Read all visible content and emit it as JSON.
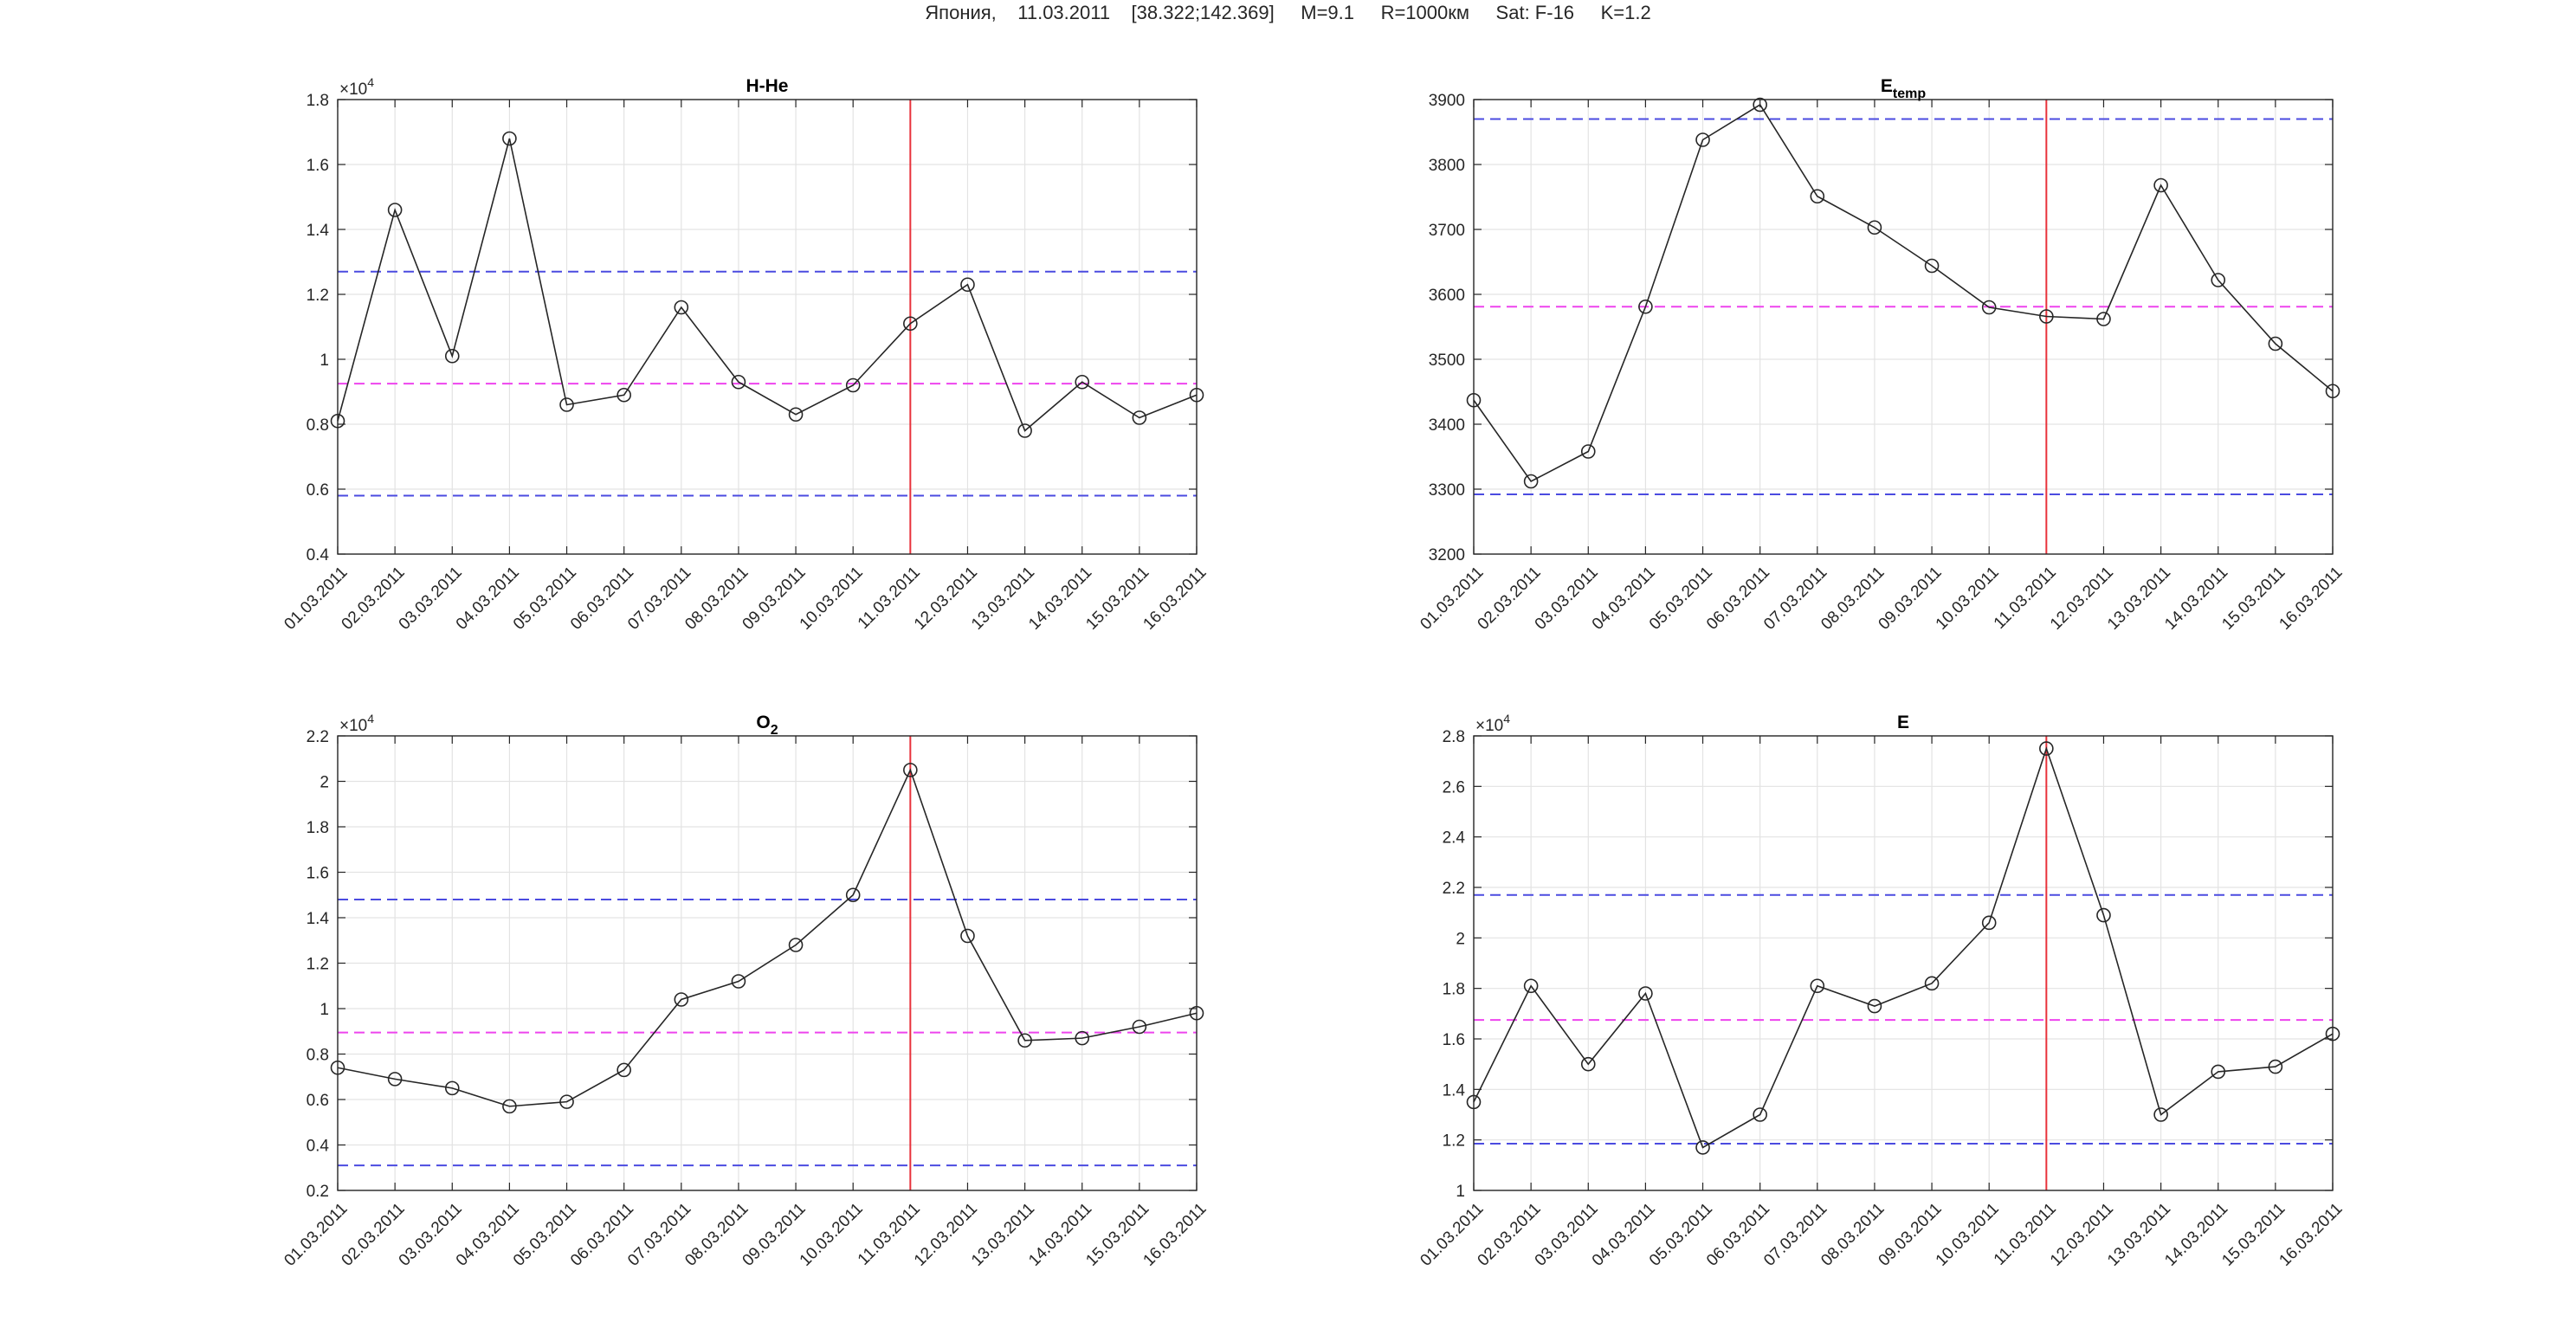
{
  "suptitle": "Япония,    11.03.2011    [38.322;142.369]     M=9.1     R=1000км     Sat: F-16     K=1.2",
  "colors": {
    "line": "#262626",
    "event": "#e8323c",
    "threshold": "#4b4be0",
    "mean": "#ee44ee",
    "grid": "#e3e3e3",
    "axes": "#262626"
  },
  "chart_data": [
    {
      "type": "line",
      "title": "H-He",
      "categories": [
        "01.03.2011",
        "02.03.2011",
        "03.03.2011",
        "04.03.2011",
        "05.03.2011",
        "06.03.2011",
        "07.03.2011",
        "08.03.2011",
        "09.03.2011",
        "10.03.2011",
        "11.03.2011",
        "12.03.2011",
        "13.03.2011",
        "14.03.2011",
        "15.03.2011",
        "16.03.2011"
      ],
      "values": [
        8100,
        14600,
        10100,
        16800,
        8600,
        8900,
        11600,
        9300,
        8300,
        9200,
        11100,
        12300,
        7800,
        9300,
        8200,
        8900
      ],
      "ylim": [
        4000,
        18000
      ],
      "yticks": [
        0.4,
        0.6,
        0.8,
        1,
        1.2,
        1.4,
        1.6,
        1.8
      ],
      "yscale_factor": 10000,
      "exponent_base": "×10",
      "exponent_power": "4",
      "upper_line": 12700,
      "mean_line": 9250,
      "lower_line": 5800,
      "event_date": "11.03.2011"
    },
    {
      "type": "line",
      "title": "E",
      "title_subscript": "temp",
      "categories": [
        "01.03.2011",
        "02.03.2011",
        "03.03.2011",
        "04.03.2011",
        "05.03.2011",
        "06.03.2011",
        "07.03.2011",
        "08.03.2011",
        "09.03.2011",
        "10.03.2011",
        "11.03.2011",
        "12.03.2011",
        "13.03.2011",
        "14.03.2011",
        "15.03.2011",
        "16.03.2011"
      ],
      "values": [
        3437,
        3312,
        3358,
        3581,
        3838,
        3892,
        3751,
        3703,
        3644,
        3580,
        3566,
        3562,
        3768,
        3622,
        3524,
        3451
      ],
      "ylim": [
        3200,
        3900
      ],
      "yticks": [
        3200,
        3300,
        3400,
        3500,
        3600,
        3700,
        3800,
        3900
      ],
      "yscale_factor": 1,
      "upper_line": 3870,
      "mean_line": 3581,
      "lower_line": 3292,
      "event_date": "11.03.2011"
    },
    {
      "type": "line",
      "title": "O",
      "title_subscript": "2",
      "categories": [
        "01.03.2011",
        "02.03.2011",
        "03.03.2011",
        "04.03.2011",
        "05.03.2011",
        "06.03.2011",
        "07.03.2011",
        "08.03.2011",
        "09.03.2011",
        "10.03.2011",
        "11.03.2011",
        "12.03.2011",
        "13.03.2011",
        "14.03.2011",
        "15.03.2011",
        "16.03.2011"
      ],
      "values": [
        7400,
        6900,
        6500,
        5700,
        5900,
        7300,
        10400,
        11200,
        12800,
        15000,
        20500,
        13200,
        8600,
        8700,
        9200,
        9800
      ],
      "ylim": [
        2000,
        22000
      ],
      "yticks": [
        0.2,
        0.4,
        0.6,
        0.8,
        1,
        1.2,
        1.4,
        1.6,
        1.8,
        2,
        2.2
      ],
      "yscale_factor": 10000,
      "exponent_base": "×10",
      "exponent_power": "4",
      "upper_line": 14800,
      "mean_line": 8950,
      "lower_line": 3100,
      "event_date": "11.03.2011"
    },
    {
      "type": "line",
      "title": "E",
      "categories": [
        "01.03.2011",
        "02.03.2011",
        "03.03.2011",
        "04.03.2011",
        "05.03.2011",
        "06.03.2011",
        "07.03.2011",
        "08.03.2011",
        "09.03.2011",
        "10.03.2011",
        "11.03.2011",
        "12.03.2011",
        "13.03.2011",
        "14.03.2011",
        "15.03.2011",
        "16.03.2011"
      ],
      "values": [
        13500,
        18100,
        15000,
        17800,
        11700,
        13000,
        18100,
        17300,
        18200,
        20600,
        27500,
        20900,
        13000,
        14700,
        14900,
        16200
      ],
      "ylim": [
        10000,
        28000
      ],
      "yticks": [
        1,
        1.2,
        1.4,
        1.6,
        1.8,
        2,
        2.2,
        2.4,
        2.6,
        2.8
      ],
      "yscale_factor": 10000,
      "exponent_base": "×10",
      "exponent_power": "4",
      "upper_line": 21700,
      "mean_line": 16750,
      "lower_line": 11850,
      "event_date": "11.03.2011"
    }
  ]
}
